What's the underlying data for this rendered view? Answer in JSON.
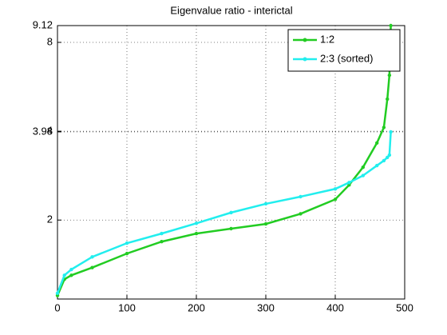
{
  "chart_data": {
    "type": "line",
    "title": "Eigenvalue ratio - interictal",
    "xlim": [
      0,
      500
    ],
    "xticks": [
      0,
      100,
      200,
      300,
      400,
      500
    ],
    "ylim": [
      1.08,
      9.12
    ],
    "yticks": [
      2,
      3.98,
      4,
      8,
      9.12
    ],
    "yscale": "log",
    "grid": true,
    "legend": "upper right",
    "x": [
      0,
      10,
      20,
      50,
      100,
      150,
      200,
      250,
      300,
      350,
      400,
      420,
      440,
      460,
      470,
      475,
      478,
      480
    ],
    "series": [
      {
        "name": "1:2",
        "color": "#22cc22",
        "values": [
          1.11,
          1.26,
          1.3,
          1.38,
          1.54,
          1.69,
          1.8,
          1.87,
          1.94,
          2.1,
          2.35,
          2.63,
          3.02,
          3.65,
          4.12,
          5.14,
          6.19,
          9.12
        ]
      },
      {
        "name": "2:3 (sorted)",
        "color": "#22eeee",
        "values": [
          1.13,
          1.3,
          1.36,
          1.5,
          1.67,
          1.8,
          1.95,
          2.12,
          2.27,
          2.4,
          2.55,
          2.68,
          2.83,
          3.06,
          3.18,
          3.26,
          3.32,
          3.98
        ]
      }
    ]
  }
}
